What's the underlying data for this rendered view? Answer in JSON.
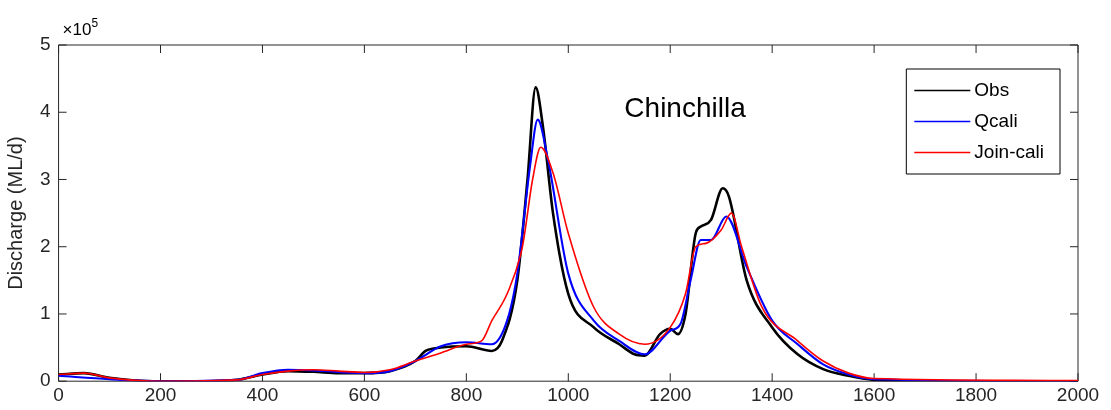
{
  "chart_data": {
    "type": "line",
    "ylabel": "Discharge (ML/d)",
    "annotations": [
      "Chinchilla",
      "×10$^{5}$"
    ],
    "xlim": [
      0,
      2000
    ],
    "xticks": [
      0,
      200,
      400,
      600,
      800,
      1000,
      1200,
      1400,
      1600,
      1800,
      2000
    ],
    "ylim": [
      0,
      5
    ],
    "yticks": [
      0,
      1,
      2,
      3,
      4,
      5
    ],
    "grid": false,
    "legend": "top right",
    "marker": "none",
    "line_style": "solid",
    "series": [
      {
        "name": "Obs",
        "color": "#000000",
        "x": [
          0,
          50,
          100,
          150,
          200,
          300,
          350,
          400,
          450,
          500,
          550,
          600,
          650,
          700,
          720,
          750,
          800,
          850,
          870,
          900,
          920,
          936,
          950,
          970,
          1000,
          1050,
          1100,
          1130,
          1150,
          1180,
          1200,
          1215,
          1230,
          1250,
          1260,
          1280,
          1303,
          1315,
          1350,
          1400,
          1450,
          1500,
          1550,
          1600,
          1700,
          2000
        ],
        "values": [
          0.1,
          0.12,
          0.05,
          0.01,
          0,
          0,
          0.02,
          0.1,
          0.15,
          0.14,
          0.12,
          0.12,
          0.15,
          0.3,
          0.45,
          0.5,
          0.52,
          0.45,
          0.6,
          1.5,
          3.0,
          4.37,
          3.8,
          2.5,
          1.3,
          0.8,
          0.55,
          0.4,
          0.38,
          0.7,
          0.78,
          0.7,
          1.0,
          2.2,
          2.3,
          2.4,
          2.87,
          2.75,
          1.5,
          0.8,
          0.4,
          0.18,
          0.08,
          0.02,
          0,
          0
        ]
      },
      {
        "name": "Qcali",
        "color": "#0000ff",
        "x": [
          0,
          100,
          200,
          350,
          400,
          450,
          500,
          600,
          650,
          700,
          750,
          800,
          850,
          880,
          900,
          925,
          940,
          960,
          1000,
          1050,
          1100,
          1150,
          1200,
          1220,
          1240,
          1260,
          1280,
          1310,
          1350,
          1400,
          1450,
          1500,
          1550,
          1600,
          2000
        ],
        "values": [
          0.08,
          0.03,
          0,
          0.02,
          0.12,
          0.17,
          0.16,
          0.12,
          0.15,
          0.3,
          0.52,
          0.58,
          0.55,
          0.9,
          1.6,
          3.2,
          3.89,
          3.3,
          1.6,
          0.9,
          0.6,
          0.4,
          0.75,
          0.85,
          1.5,
          2.1,
          2.1,
          2.45,
          1.7,
          0.9,
          0.55,
          0.25,
          0.1,
          0.03,
          0
        ]
      },
      {
        "name": "Join-cali",
        "color": "#ff0000",
        "x": [
          0,
          50,
          100,
          200,
          350,
          400,
          450,
          500,
          550,
          600,
          650,
          700,
          750,
          800,
          830,
          850,
          880,
          910,
          930,
          946,
          970,
          1000,
          1050,
          1100,
          1150,
          1200,
          1230,
          1250,
          1270,
          1300,
          1320,
          1340,
          1380,
          1450,
          1500,
          1550,
          1600,
          2000
        ],
        "values": [
          0.1,
          0.12,
          0.05,
          0,
          0.02,
          0.1,
          0.15,
          0.17,
          0.15,
          0.13,
          0.17,
          0.3,
          0.42,
          0.55,
          0.6,
          0.9,
          1.3,
          2.0,
          3.0,
          3.48,
          3.1,
          2.2,
          1.1,
          0.7,
          0.55,
          0.8,
          1.3,
          2.0,
          2.05,
          2.25,
          2.5,
          2.0,
          1.1,
          0.6,
          0.3,
          0.12,
          0.04,
          0.01
        ]
      }
    ]
  }
}
